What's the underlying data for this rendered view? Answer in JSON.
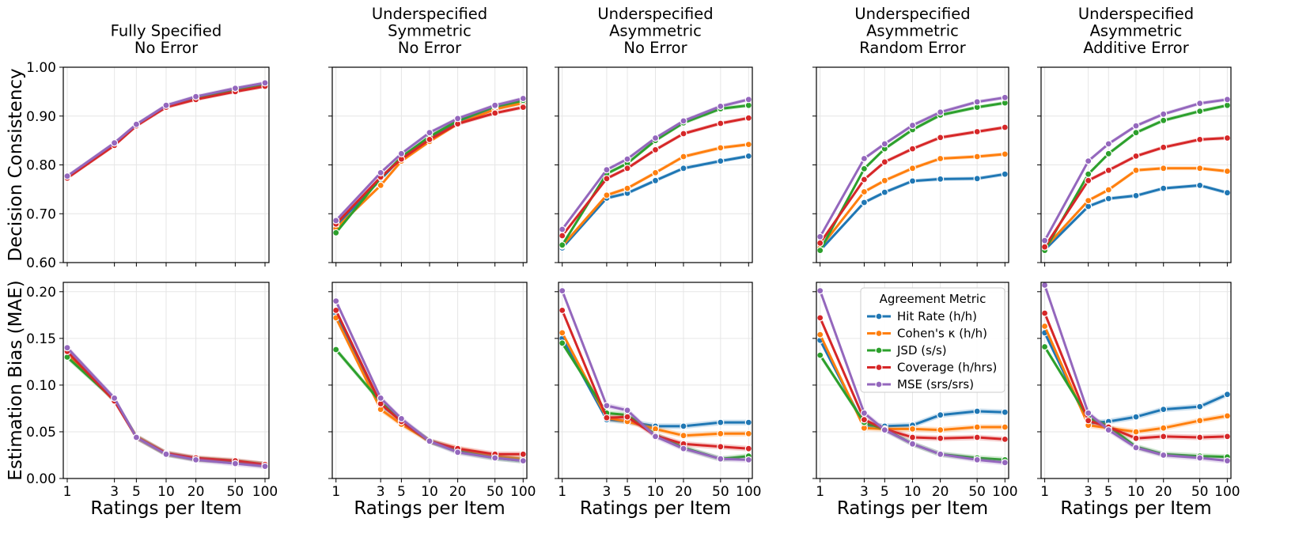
{
  "chart_data": {
    "type": "line",
    "x": [
      1,
      3,
      5,
      10,
      20,
      50,
      100
    ],
    "x_tick_labels": [
      "1",
      "3",
      "5",
      "10",
      "20",
      "50",
      "100"
    ],
    "xscale": "log",
    "xlabel": "Ratings per Item",
    "grid": true,
    "row_ylabels": [
      "Decision Consistency",
      "Estimation Bias (MAE)"
    ],
    "row_yticks": [
      [
        "0.60",
        "0.70",
        "0.80",
        "0.90",
        "1.00"
      ],
      [
        "0.00",
        "0.05",
        "0.10",
        "0.15",
        "0.20"
      ]
    ],
    "row_ylims": [
      [
        0.6,
        1.0
      ],
      [
        0.0,
        0.21
      ]
    ],
    "legend": {
      "title": "Agreement Metric",
      "placement": "upper-right of panel 4, bottom row",
      "entries": [
        {
          "label": "Hit Rate (h/h)",
          "color": "#1f77b4"
        },
        {
          "label": "Cohen's κ (h/h)",
          "color": "#ff7f0e"
        },
        {
          "label": "JSD (s/s)",
          "color": "#2ca02c"
        },
        {
          "label": "Coverage (h/hrs)",
          "color": "#d62728"
        },
        {
          "label": "MSE (srs/srs)",
          "color": "#9467bd"
        }
      ]
    },
    "panels": [
      {
        "title_lines": [
          "Fully Specified",
          "No Error"
        ],
        "consistency": [
          [
            0.775,
            0.843,
            0.882,
            0.92,
            0.938,
            0.955,
            0.966
          ],
          [
            0.774,
            0.841,
            0.881,
            0.919,
            0.937,
            0.954,
            0.965
          ],
          [
            0.775,
            0.842,
            0.882,
            0.92,
            0.938,
            0.955,
            0.966
          ],
          [
            0.773,
            0.84,
            0.88,
            0.918,
            0.934,
            0.95,
            0.961
          ],
          [
            0.777,
            0.845,
            0.883,
            0.922,
            0.94,
            0.957,
            0.968
          ]
        ],
        "bias": [
          [
            0.135,
            0.085,
            0.045,
            0.027,
            0.021,
            0.018,
            0.015
          ],
          [
            0.134,
            0.084,
            0.045,
            0.027,
            0.021,
            0.018,
            0.015
          ],
          [
            0.13,
            0.084,
            0.044,
            0.026,
            0.021,
            0.018,
            0.014
          ],
          [
            0.136,
            0.083,
            0.044,
            0.027,
            0.022,
            0.019,
            0.015
          ],
          [
            0.14,
            0.086,
            0.044,
            0.026,
            0.02,
            0.016,
            0.013
          ]
        ]
      },
      {
        "title_lines": [
          "Underspecified",
          "Symmetric",
          "No Error"
        ],
        "consistency": [
          [
            0.675,
            0.77,
            0.815,
            0.856,
            0.888,
            0.915,
            0.928
          ],
          [
            0.67,
            0.758,
            0.808,
            0.848,
            0.884,
            0.914,
            0.927
          ],
          [
            0.661,
            0.773,
            0.816,
            0.858,
            0.891,
            0.92,
            0.932
          ],
          [
            0.679,
            0.775,
            0.812,
            0.852,
            0.884,
            0.906,
            0.918
          ],
          [
            0.686,
            0.784,
            0.823,
            0.866,
            0.895,
            0.922,
            0.936
          ]
        ],
        "bias": [
          [
            0.176,
            0.079,
            0.062,
            0.04,
            0.03,
            0.023,
            0.02
          ],
          [
            0.172,
            0.074,
            0.058,
            0.04,
            0.032,
            0.024,
            0.021
          ],
          [
            0.138,
            0.082,
            0.062,
            0.04,
            0.029,
            0.022,
            0.019
          ],
          [
            0.18,
            0.08,
            0.061,
            0.04,
            0.032,
            0.026,
            0.026
          ],
          [
            0.19,
            0.086,
            0.064,
            0.04,
            0.028,
            0.022,
            0.019
          ]
        ]
      },
      {
        "title_lines": [
          "Underspecified",
          "Asymmetric",
          "No Error"
        ],
        "consistency": [
          [
            0.63,
            0.732,
            0.742,
            0.768,
            0.793,
            0.808,
            0.818
          ],
          [
            0.634,
            0.738,
            0.752,
            0.784,
            0.817,
            0.835,
            0.842
          ],
          [
            0.636,
            0.782,
            0.803,
            0.85,
            0.886,
            0.915,
            0.922
          ],
          [
            0.655,
            0.772,
            0.793,
            0.831,
            0.864,
            0.885,
            0.896
          ],
          [
            0.668,
            0.79,
            0.812,
            0.855,
            0.89,
            0.92,
            0.934
          ]
        ],
        "bias": [
          [
            0.15,
            0.063,
            0.061,
            0.056,
            0.056,
            0.06,
            0.06
          ],
          [
            0.156,
            0.065,
            0.061,
            0.053,
            0.046,
            0.048,
            0.048
          ],
          [
            0.145,
            0.07,
            0.068,
            0.047,
            0.033,
            0.021,
            0.024
          ],
          [
            0.18,
            0.065,
            0.066,
            0.046,
            0.037,
            0.034,
            0.032
          ],
          [
            0.201,
            0.078,
            0.073,
            0.045,
            0.032,
            0.021,
            0.02
          ]
        ]
      },
      {
        "title_lines": [
          "Underspecified",
          "Asymmetric",
          "Random Error"
        ],
        "consistency": [
          [
            0.625,
            0.723,
            0.744,
            0.767,
            0.771,
            0.772,
            0.781
          ],
          [
            0.63,
            0.745,
            0.768,
            0.793,
            0.813,
            0.817,
            0.822
          ],
          [
            0.625,
            0.792,
            0.833,
            0.872,
            0.902,
            0.918,
            0.927
          ],
          [
            0.64,
            0.77,
            0.806,
            0.833,
            0.856,
            0.868,
            0.877
          ],
          [
            0.653,
            0.813,
            0.843,
            0.881,
            0.908,
            0.929,
            0.938
          ]
        ],
        "bias": [
          [
            0.148,
            0.057,
            0.056,
            0.057,
            0.068,
            0.072,
            0.071
          ],
          [
            0.154,
            0.054,
            0.053,
            0.053,
            0.052,
            0.055,
            0.055
          ],
          [
            0.132,
            0.06,
            0.053,
            0.037,
            0.026,
            0.022,
            0.02
          ],
          [
            0.172,
            0.063,
            0.053,
            0.044,
            0.043,
            0.044,
            0.042
          ],
          [
            0.201,
            0.07,
            0.052,
            0.037,
            0.026,
            0.02,
            0.017
          ]
        ]
      },
      {
        "title_lines": [
          "Underspecified",
          "Asymmetric",
          "Additive Error"
        ],
        "consistency": [
          [
            0.626,
            0.715,
            0.731,
            0.737,
            0.752,
            0.758,
            0.743
          ],
          [
            0.63,
            0.727,
            0.749,
            0.789,
            0.793,
            0.793,
            0.787
          ],
          [
            0.625,
            0.781,
            0.823,
            0.866,
            0.891,
            0.91,
            0.922
          ],
          [
            0.632,
            0.768,
            0.789,
            0.818,
            0.836,
            0.852,
            0.855
          ],
          [
            0.645,
            0.808,
            0.843,
            0.88,
            0.904,
            0.926,
            0.934
          ]
        ],
        "bias": [
          [
            0.156,
            0.059,
            0.061,
            0.066,
            0.074,
            0.077,
            0.09
          ],
          [
            0.163,
            0.057,
            0.054,
            0.05,
            0.054,
            0.062,
            0.067
          ],
          [
            0.141,
            0.065,
            0.056,
            0.034,
            0.026,
            0.024,
            0.023
          ],
          [
            0.177,
            0.062,
            0.055,
            0.043,
            0.045,
            0.044,
            0.045
          ],
          [
            0.207,
            0.07,
            0.052,
            0.033,
            0.025,
            0.022,
            0.019
          ]
        ]
      }
    ]
  }
}
